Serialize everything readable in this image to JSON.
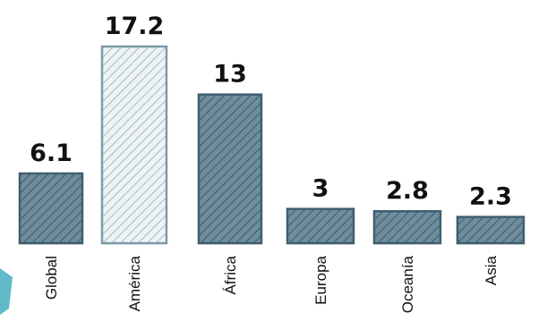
{
  "chart_data": {
    "type": "bar",
    "categories": [
      "Global",
      "América",
      "África",
      "Europa",
      "Oceanía",
      "Asia"
    ],
    "values": [
      6.1,
      17.2,
      13,
      3,
      2.8,
      2.3
    ],
    "value_labels": [
      "6.1",
      "17.2",
      "13",
      "3",
      "2.8",
      "2.3"
    ],
    "bar_styles": [
      "dark",
      "light",
      "dark",
      "dark",
      "dark",
      "dark"
    ],
    "ylim": [
      0,
      17.2
    ],
    "grid": false,
    "legend": "none",
    "title": "",
    "xlabel": "",
    "ylabel": ""
  },
  "colors": {
    "bar_dark_fill": "#6f8d9c",
    "bar_dark_stroke": "#3f5f70",
    "bar_light_fill": "#dfe8ed",
    "bar_light_stroke": "#7f9aa8",
    "accent_teal": "#62b9c9",
    "label": "#111111"
  }
}
